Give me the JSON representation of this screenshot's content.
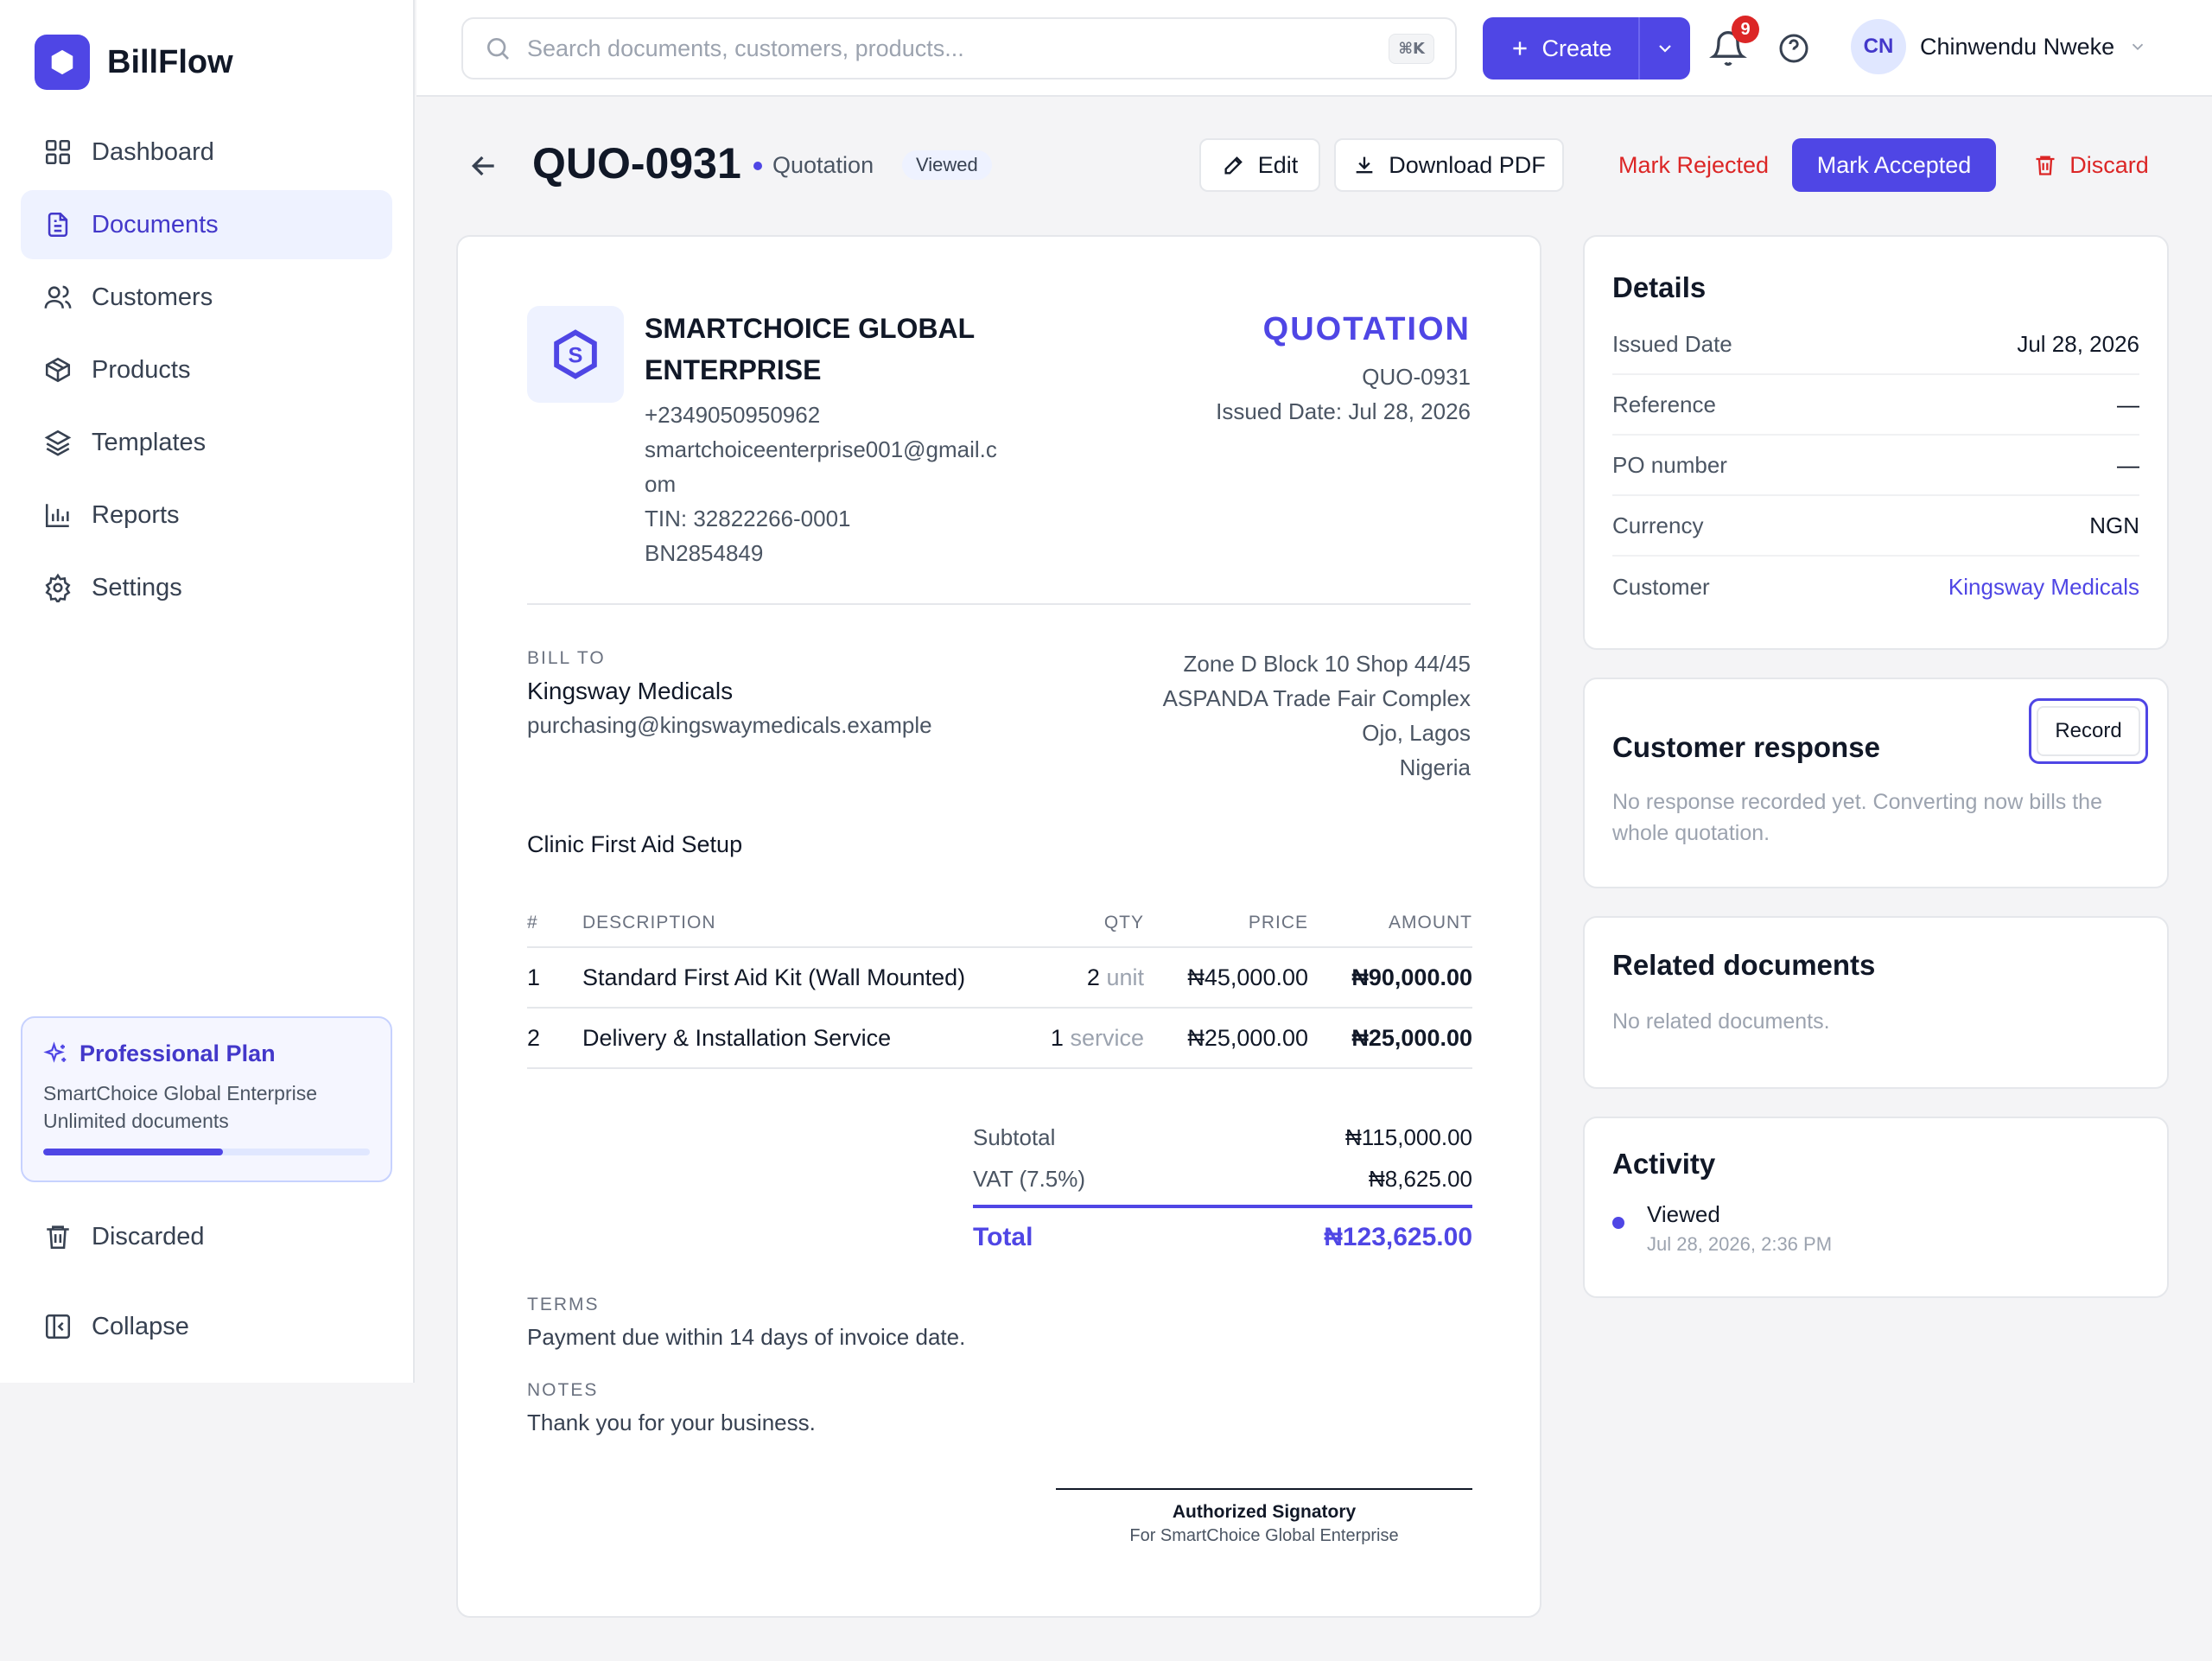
{
  "app": {
    "name": "BillFlow"
  },
  "nav": {
    "items": [
      {
        "label": "Dashboard",
        "icon": "grid-icon"
      },
      {
        "label": "Documents",
        "icon": "document-icon"
      },
      {
        "label": "Customers",
        "icon": "users-icon"
      },
      {
        "label": "Products",
        "icon": "box-icon"
      },
      {
        "label": "Templates",
        "icon": "layers-icon"
      },
      {
        "label": "Reports",
        "icon": "bar-chart-icon"
      },
      {
        "label": "Settings",
        "icon": "gear-icon"
      }
    ],
    "active": "Documents"
  },
  "plan": {
    "title": "Professional Plan",
    "company": "SmartChoice Global Enterprise",
    "limit": "Unlimited documents",
    "usage_fraction": 0.55
  },
  "sidebar_bottom": {
    "discarded": "Discarded",
    "collapse": "Collapse"
  },
  "search": {
    "placeholder": "Search documents, customers, products...",
    "shortcut": "⌘K"
  },
  "topbar": {
    "create_label": "Create",
    "notification_count": "9",
    "user_initials": "CN",
    "user_name": "Chinwendu Nweke"
  },
  "document": {
    "id": "QUO-0931",
    "type": "Quotation",
    "status": "Viewed",
    "actions": {
      "edit": "Edit",
      "download": "Download PDF",
      "reject": "Mark Rejected",
      "accept": "Mark Accepted",
      "discard": "Discard"
    },
    "company": {
      "name": "SMARTCHOICE GLOBAL ENTERPRISE",
      "logo_letter": "S",
      "phone": "+2349050950962",
      "email": "smartchoiceenterprise001@gmail.com",
      "tin": "TIN: 32822266-0001",
      "bn": "BN2854849"
    },
    "heading": "QUOTATION",
    "number": "QUO-0931",
    "issued": "Issued Date: Jul 28, 2026",
    "bill_to": {
      "label": "BILL TO",
      "name": "Kingsway Medicals",
      "email": "purchasing@kingswaymedicals.example",
      "address": [
        "Zone D Block 10 Shop 44/45",
        "ASPANDA Trade Fair Complex",
        "Ojo, Lagos",
        "Nigeria"
      ]
    },
    "subject": "Clinic First Aid Setup",
    "columns": {
      "num": "#",
      "desc": "DESCRIPTION",
      "qty": "QTY",
      "price": "PRICE",
      "amount": "AMOUNT"
    },
    "items": [
      {
        "num": "1",
        "desc": "Standard First Aid Kit (Wall Mounted)",
        "qty": "2",
        "unit": "unit",
        "price": "₦45,000.00",
        "amount": "₦90,000.00"
      },
      {
        "num": "2",
        "desc": "Delivery & Installation Service",
        "qty": "1",
        "unit": "service",
        "price": "₦25,000.00",
        "amount": "₦25,000.00"
      }
    ],
    "totals": {
      "subtotal_label": "Subtotal",
      "subtotal": "₦115,000.00",
      "vat_label": "VAT (7.5%)",
      "vat": "₦8,625.00",
      "total_label": "Total",
      "total": "₦123,625.00"
    },
    "terms_label": "TERMS",
    "terms": "Payment due within 14 days of invoice date.",
    "notes_label": "NOTES",
    "notes": "Thank you for your business.",
    "signatory": "Authorized Signatory",
    "signatory_for": "For SmartChoice Global Enterprise"
  },
  "details": {
    "title": "Details",
    "rows": [
      {
        "label": "Issued Date",
        "value": "Jul 28, 2026"
      },
      {
        "label": "Reference",
        "value": "—"
      },
      {
        "label": "PO number",
        "value": "—"
      },
      {
        "label": "Currency",
        "value": "NGN"
      },
      {
        "label": "Customer",
        "value": "Kingsway Medicals"
      }
    ]
  },
  "customer_response": {
    "title": "Customer response",
    "record": "Record",
    "empty": "No response recorded yet. Converting now bills the whole quotation."
  },
  "related": {
    "title": "Related documents",
    "empty": "No related documents."
  },
  "activity": {
    "title": "Activity",
    "events": [
      {
        "title": "Viewed",
        "time": "Jul 28, 2026, 2:36 PM"
      }
    ]
  },
  "colors": {
    "accent": "#4f46e5",
    "danger": "#dc2626"
  }
}
